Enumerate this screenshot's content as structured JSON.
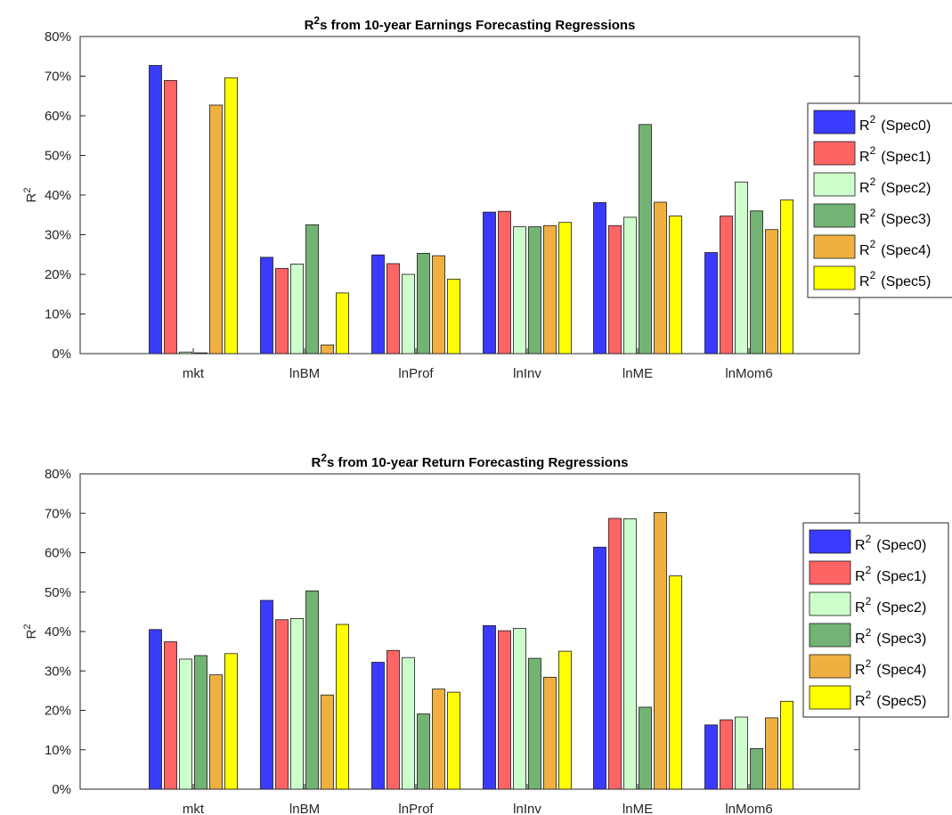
{
  "colors": {
    "Spec0": "#3b3bff",
    "Spec1": "#ff6464",
    "Spec2": "#ccffcc",
    "Spec3": "#73b373",
    "Spec4": "#f0b040",
    "Spec5": "#ffff00"
  },
  "chart_data": [
    {
      "type": "bar",
      "title_main": "R",
      "title_sup": "2",
      "title_rest": "s from 10-year Earnings Forecasting Regressions",
      "ylabel_main": "R",
      "ylabel_sup": "2",
      "categories": [
        "mkt",
        "lnBM",
        "lnProf",
        "lnInv",
        "lnME",
        "lnMom6"
      ],
      "ylim": [
        0,
        0.8
      ],
      "yticks": [
        "0%",
        "10%",
        "20%",
        "30%",
        "40%",
        "50%",
        "60%",
        "70%",
        "80%"
      ],
      "legend_position": "right",
      "grid": false,
      "series": [
        {
          "name": "Spec0",
          "legend_prefix": "R",
          "legend_sup": "2",
          "legend_text": "(Spec0)",
          "values": [
            0.727,
            0.243,
            0.249,
            0.357,
            0.381,
            0.255
          ]
        },
        {
          "name": "Spec1",
          "legend_prefix": "R",
          "legend_sup": "2",
          "legend_text": "(Spec1)",
          "values": [
            0.689,
            0.215,
            0.227,
            0.359,
            0.323,
            0.347
          ]
        },
        {
          "name": "Spec2",
          "legend_prefix": "R",
          "legend_sup": "2",
          "legend_text": "(Spec2)",
          "values": [
            0.004,
            0.226,
            0.2,
            0.32,
            0.344,
            0.433
          ]
        },
        {
          "name": "Spec3",
          "legend_prefix": "R",
          "legend_sup": "2",
          "legend_text": "(Spec3)",
          "values": [
            0.002,
            0.325,
            0.253,
            0.32,
            0.578,
            0.36
          ]
        },
        {
          "name": "Spec4",
          "legend_prefix": "R",
          "legend_sup": "2",
          "legend_text": "(Spec4)",
          "values": [
            0.627,
            0.022,
            0.247,
            0.323,
            0.382,
            0.313
          ]
        },
        {
          "name": "Spec5",
          "legend_prefix": "R",
          "legend_sup": "2",
          "legend_text": "(Spec5)",
          "values": [
            0.696,
            0.153,
            0.188,
            0.331,
            0.347,
            0.388
          ]
        }
      ]
    },
    {
      "type": "bar",
      "title_main": "R",
      "title_sup": "2",
      "title_rest": "s from 10-year Return Forecasting Regressions",
      "ylabel_main": "R",
      "ylabel_sup": "2",
      "categories": [
        "mkt",
        "lnBM",
        "lnProf",
        "lnInv",
        "lnME",
        "lnMom6"
      ],
      "ylim": [
        0,
        0.8
      ],
      "yticks": [
        "0%",
        "10%",
        "20%",
        "30%",
        "40%",
        "50%",
        "60%",
        "70%",
        "80%"
      ],
      "legend_position": "right",
      "grid": false,
      "series": [
        {
          "name": "Spec0",
          "legend_prefix": "R",
          "legend_sup": "2",
          "legend_text": "(Spec0)",
          "values": [
            0.405,
            0.479,
            0.322,
            0.415,
            0.614,
            0.163
          ]
        },
        {
          "name": "Spec1",
          "legend_prefix": "R",
          "legend_sup": "2",
          "legend_text": "(Spec1)",
          "values": [
            0.374,
            0.43,
            0.352,
            0.402,
            0.687,
            0.176
          ]
        },
        {
          "name": "Spec2",
          "legend_prefix": "R",
          "legend_sup": "2",
          "legend_text": "(Spec2)",
          "values": [
            0.33,
            0.433,
            0.334,
            0.408,
            0.686,
            0.183
          ]
        },
        {
          "name": "Spec3",
          "legend_prefix": "R",
          "legend_sup": "2",
          "legend_text": "(Spec3)",
          "values": [
            0.339,
            0.503,
            0.191,
            0.332,
            0.208,
            0.103
          ]
        },
        {
          "name": "Spec4",
          "legend_prefix": "R",
          "legend_sup": "2",
          "legend_text": "(Spec4)",
          "values": [
            0.29,
            0.239,
            0.254,
            0.284,
            0.702,
            0.181
          ]
        },
        {
          "name": "Spec5",
          "legend_prefix": "R",
          "legend_sup": "2",
          "legend_text": "(Spec5)",
          "values": [
            0.344,
            0.418,
            0.246,
            0.35,
            0.541,
            0.223
          ]
        }
      ]
    }
  ]
}
